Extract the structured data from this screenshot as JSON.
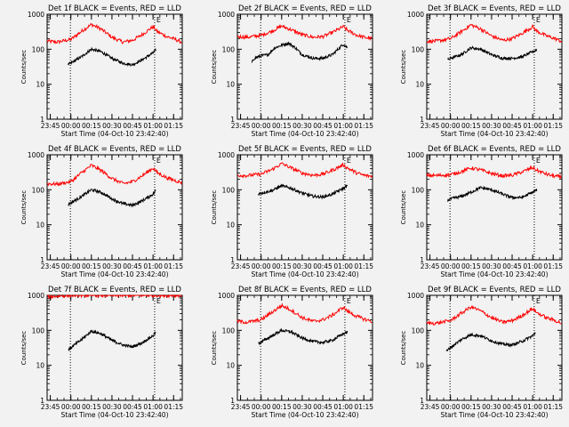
{
  "chart_data": {
    "type": "line",
    "common": {
      "y_scale": "log",
      "ylim": [
        1,
        1000
      ],
      "y_ticks": [
        1,
        10,
        100,
        1000
      ],
      "y_tick_labels": [
        "1",
        "10",
        "100",
        "1000"
      ],
      "ylabel": "Counts/sec",
      "xlabel": "Start Time (04-Oct-10 23:42:40)",
      "xlim": [
        "23:42:40",
        "01:21:20"
      ],
      "x_ticks": [
        "23:45",
        "00:00",
        "00:15",
        "00:30",
        "00:45",
        "01:00",
        "01:15"
      ],
      "vertical_lines": [
        "23:59:40",
        "01:01:10"
      ],
      "marker_label": "E",
      "marker_time": "01:01:10",
      "series_colors": {
        "events": "#000000",
        "lld": "#ff0000"
      }
    },
    "panels": [
      {
        "title": "Det 1f BLACK = Events, RED = LLD",
        "x": [
          "23:42:40",
          "23:50",
          "00:00",
          "00:08",
          "00:15",
          "00:22",
          "00:30",
          "00:38",
          "00:45",
          "00:52",
          "01:00",
          "01:03",
          "01:10",
          "01:15",
          "01:21"
        ],
        "series": [
          {
            "key": "lld",
            "values": [
              170,
              160,
              190,
              330,
              510,
              380,
              220,
              160,
              180,
              260,
              440,
              320,
              230,
              200,
              160
            ]
          },
          {
            "key": "events",
            "start": "23:58",
            "end": "01:02",
            "x": [
              "23:58",
              "00:00",
              "00:08",
              "00:15",
              "00:22",
              "00:30",
              "00:38",
              "00:45",
              "00:52",
              "01:00",
              "01:02"
            ],
            "values": [
              36,
              40,
              62,
              100,
              85,
              55,
              40,
              36,
              50,
              78,
              95
            ]
          }
        ]
      },
      {
        "title": "Det 2f BLACK = Events, RED = LLD",
        "x": [
          "23:42:40",
          "23:50",
          "00:00",
          "00:08",
          "00:15",
          "00:22",
          "00:30",
          "00:38",
          "00:45",
          "00:52",
          "01:00",
          "01:03",
          "01:10",
          "01:15",
          "01:21"
        ],
        "series": [
          {
            "key": "lld",
            "values": [
              230,
              220,
              250,
              330,
              460,
              360,
              260,
              220,
              230,
              300,
              440,
              350,
              250,
              220,
              200
            ]
          },
          {
            "key": "events",
            "start": "23:53",
            "end": "01:03",
            "x": [
              "23:53",
              "23:55",
              "00:00",
              "00:05",
              "00:10",
              "00:15",
              "00:20",
              "00:25",
              "00:30",
              "00:38",
              "00:45",
              "00:52",
              "01:00",
              "01:03"
            ],
            "values": [
              40,
              55,
              65,
              70,
              110,
              130,
              150,
              110,
              70,
              55,
              55,
              70,
              140,
              110
            ]
          }
        ]
      },
      {
        "title": "Det 3f BLACK = Events, RED = LLD",
        "x": [
          "23:42:40",
          "23:50",
          "00:00",
          "00:08",
          "00:15",
          "00:22",
          "00:30",
          "00:38",
          "00:45",
          "00:52",
          "01:00",
          "01:03",
          "01:10",
          "01:15",
          "01:21"
        ],
        "series": [
          {
            "key": "lld",
            "values": [
              170,
              170,
              200,
              320,
              500,
              380,
              240,
              180,
              200,
              280,
              440,
              330,
              240,
              210,
              170
            ]
          },
          {
            "key": "events",
            "start": "23:58",
            "end": "01:03",
            "x": [
              "23:58",
              "00:00",
              "00:08",
              "00:15",
              "00:22",
              "00:30",
              "00:38",
              "00:45",
              "00:52",
              "01:00",
              "01:03"
            ],
            "values": [
              50,
              55,
              70,
              110,
              100,
              70,
              55,
              55,
              60,
              85,
              95
            ]
          }
        ]
      },
      {
        "title": "Det 4f BLACK = Events, RED = LLD",
        "x": [
          "23:42:40",
          "23:50",
          "00:00",
          "00:08",
          "00:15",
          "00:22",
          "00:30",
          "00:38",
          "00:45",
          "00:52",
          "01:00",
          "01:03",
          "01:10",
          "01:15",
          "01:21"
        ],
        "series": [
          {
            "key": "lld",
            "values": [
              150,
              145,
              170,
              310,
              500,
              360,
              210,
              150,
              170,
              250,
              420,
              310,
              220,
              190,
              160
            ]
          },
          {
            "key": "events",
            "start": "23:58",
            "end": "01:02",
            "x": [
              "23:58",
              "00:00",
              "00:08",
              "00:15",
              "00:22",
              "00:30",
              "00:38",
              "00:45",
              "00:52",
              "01:00",
              "01:02"
            ],
            "values": [
              38,
              42,
              65,
              100,
              85,
              55,
              40,
              36,
              48,
              75,
              95
            ]
          }
        ]
      },
      {
        "title": "Det 5f BLACK = Events, RED = LLD",
        "x": [
          "23:42:40",
          "23:50",
          "00:00",
          "00:08",
          "00:15",
          "00:22",
          "00:30",
          "00:38",
          "00:45",
          "00:52",
          "01:00",
          "01:03",
          "01:10",
          "01:15",
          "01:21"
        ],
        "series": [
          {
            "key": "lld",
            "values": [
              260,
              255,
              280,
              380,
              560,
              420,
              300,
              260,
              280,
              360,
              520,
              420,
              300,
              260,
              240
            ]
          },
          {
            "key": "events",
            "start": "23:58",
            "end": "01:03",
            "x": [
              "23:58",
              "00:00",
              "00:08",
              "00:15",
              "00:22",
              "00:30",
              "00:38",
              "00:45",
              "00:52",
              "01:00",
              "01:03"
            ],
            "values": [
              75,
              80,
              95,
              130,
              110,
              80,
              65,
              62,
              75,
              110,
              130
            ]
          }
        ]
      },
      {
        "title": "Det 6f BLACK = Events, RED = LLD",
        "x": [
          "23:42:40",
          "23:50",
          "00:00",
          "00:08",
          "00:15",
          "00:22",
          "00:30",
          "00:38",
          "00:45",
          "00:52",
          "01:00",
          "01:03",
          "01:10",
          "01:15",
          "01:21"
        ],
        "series": [
          {
            "key": "lld",
            "values": [
              260,
              255,
              270,
              330,
              420,
              370,
              290,
              250,
              260,
              320,
              430,
              360,
              280,
              250,
              230
            ]
          },
          {
            "key": "events",
            "start": "23:58",
            "end": "01:03",
            "x": [
              "23:58",
              "00:00",
              "00:08",
              "00:15",
              "00:22",
              "00:30",
              "00:38",
              "00:45",
              "00:52",
              "01:00",
              "01:03"
            ],
            "values": [
              50,
              55,
              65,
              85,
              115,
              100,
              75,
              60,
              60,
              85,
              100
            ]
          }
        ]
      },
      {
        "title": "Det 7f BLACK = Events, RED = LLD",
        "x": [
          "23:42:40",
          "23:50",
          "00:00",
          "00:08",
          "00:15",
          "00:22",
          "00:30",
          "00:38",
          "00:45",
          "00:52",
          "01:00",
          "01:03",
          "01:10",
          "01:15",
          "01:21"
        ],
        "series": [
          {
            "key": "lld",
            "values": [
              900,
              950,
              1000,
              1000,
              1000,
              1000,
              1000,
              1000,
              1000,
              1000,
              1000,
              1000,
              1000,
              1000,
              1000
            ]
          },
          {
            "key": "events",
            "start": "23:58",
            "end": "01:02",
            "x": [
              "23:58",
              "00:00",
              "00:08",
              "00:15",
              "00:22",
              "00:30",
              "00:38",
              "00:45",
              "00:52",
              "01:00",
              "01:02"
            ],
            "values": [
              28,
              32,
              55,
              95,
              80,
              52,
              38,
              34,
              44,
              70,
              90
            ]
          }
        ]
      },
      {
        "title": "Det 8f BLACK = Events, RED = LLD",
        "x": [
          "23:42:40",
          "23:50",
          "00:00",
          "00:08",
          "00:15",
          "00:22",
          "00:30",
          "00:38",
          "00:45",
          "00:52",
          "01:00",
          "01:03",
          "01:10",
          "01:15",
          "01:21"
        ],
        "series": [
          {
            "key": "lld",
            "values": [
              180,
              170,
              200,
              330,
              510,
              380,
              230,
              180,
              200,
              270,
              460,
              350,
              250,
              210,
              180
            ]
          },
          {
            "key": "events",
            "start": "23:58",
            "end": "01:03",
            "x": [
              "23:58",
              "00:00",
              "00:08",
              "00:15",
              "00:22",
              "00:30",
              "00:38",
              "00:45",
              "00:52",
              "01:00",
              "01:03"
            ],
            "values": [
              42,
              46,
              70,
              100,
              90,
              60,
              48,
              45,
              52,
              80,
              90
            ]
          }
        ]
      },
      {
        "title": "Det 9f BLACK = Events, RED = LLD",
        "x": [
          "23:42:40",
          "23:50",
          "00:00",
          "00:08",
          "00:15",
          "00:22",
          "00:30",
          "00:38",
          "00:45",
          "00:52",
          "01:00",
          "01:03",
          "01:10",
          "01:15",
          "01:21"
        ],
        "series": [
          {
            "key": "lld",
            "values": [
              160,
              160,
              190,
              310,
              470,
              360,
              230,
              170,
              190,
              260,
              420,
              320,
              230,
              200,
              160
            ]
          },
          {
            "key": "events",
            "start": "23:57",
            "end": "01:02",
            "x": [
              "23:57",
              "00:00",
              "00:08",
              "00:15",
              "00:22",
              "00:30",
              "00:38",
              "00:45",
              "00:52",
              "01:00",
              "01:02"
            ],
            "values": [
              25,
              32,
              55,
              75,
              70,
              50,
              40,
              38,
              48,
              70,
              85
            ]
          }
        ]
      }
    ]
  }
}
